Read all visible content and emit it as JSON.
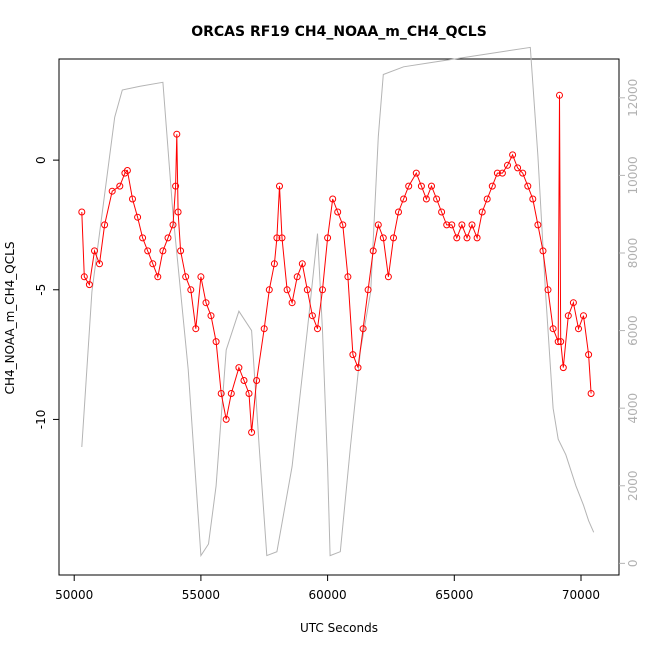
{
  "chart_data": {
    "type": "line",
    "title": "ORCAS RF19 CH4_NOAA_m_CH4_QCLS",
    "xlabel": "UTC Seconds",
    "ylabel": "CH4_NOAA_m_CH4_QCLS",
    "xlim": [
      49400,
      71500
    ],
    "ylim": [
      -16.0,
      3.9
    ],
    "y2lim": [
      -300,
      13000
    ],
    "x_ticks": [
      50000,
      55000,
      60000,
      65000,
      70000
    ],
    "x_tick_labels": [
      "50000",
      "55000",
      "60000",
      "65000",
      "70000"
    ],
    "y_ticks": [
      0,
      -5,
      -10
    ],
    "y_tick_labels": [
      "0",
      "-5",
      "-10"
    ],
    "y2_ticks": [
      0,
      2000,
      4000,
      6000,
      8000,
      10000,
      12000
    ],
    "y2_tick_labels": [
      "0",
      "2000",
      "4000",
      "6000",
      "8000",
      "10000",
      "12000"
    ],
    "colors": {
      "series": "#ff0000",
      "altitude": "#b4b4b4",
      "axis": "#000000"
    },
    "series": [
      {
        "name": "CH4_NOAA_m_CH4_QCLS",
        "axis": "left",
        "style": "line+markers",
        "points": [
          [
            50300,
            -2.0
          ],
          [
            50400,
            -4.5
          ],
          [
            50600,
            -4.8
          ],
          [
            50800,
            -3.5
          ],
          [
            51000,
            -4.0
          ],
          [
            51200,
            -2.5
          ],
          [
            51500,
            -1.2
          ],
          [
            51800,
            -1.0
          ],
          [
            52000,
            -0.5
          ],
          [
            52100,
            -0.4
          ],
          [
            52300,
            -1.5
          ],
          [
            52500,
            -2.2
          ],
          [
            52700,
            -3.0
          ],
          [
            52900,
            -3.5
          ],
          [
            53100,
            -4.0
          ],
          [
            53300,
            -4.5
          ],
          [
            53500,
            -3.5
          ],
          [
            53700,
            -3.0
          ],
          [
            53900,
            -2.5
          ],
          [
            54000,
            -1.0
          ],
          [
            54050,
            1.0
          ],
          [
            54100,
            -2.0
          ],
          [
            54200,
            -3.5
          ],
          [
            54400,
            -4.5
          ],
          [
            54600,
            -5.0
          ],
          [
            54800,
            -6.5
          ],
          [
            55000,
            -4.5
          ],
          [
            55200,
            -5.5
          ],
          [
            55400,
            -6.0
          ],
          [
            55600,
            -7.0
          ],
          [
            55800,
            -9.0
          ],
          [
            56000,
            -10.0
          ],
          [
            56200,
            -9.0
          ],
          [
            56500,
            -8.0
          ],
          [
            56700,
            -8.5
          ],
          [
            56900,
            -9.0
          ],
          [
            57000,
            -10.5
          ],
          [
            57200,
            -8.5
          ],
          [
            57500,
            -6.5
          ],
          [
            57700,
            -5.0
          ],
          [
            57900,
            -4.0
          ],
          [
            58000,
            -3.0
          ],
          [
            58100,
            -1.0
          ],
          [
            58200,
            -3.0
          ],
          [
            58400,
            -5.0
          ],
          [
            58600,
            -5.5
          ],
          [
            58800,
            -4.5
          ],
          [
            59000,
            -4.0
          ],
          [
            59200,
            -5.0
          ],
          [
            59400,
            -6.0
          ],
          [
            59600,
            -6.5
          ],
          [
            59800,
            -5.0
          ],
          [
            60000,
            -3.0
          ],
          [
            60200,
            -1.5
          ],
          [
            60400,
            -2.0
          ],
          [
            60600,
            -2.5
          ],
          [
            60800,
            -4.5
          ],
          [
            61000,
            -7.5
          ],
          [
            61200,
            -8.0
          ],
          [
            61400,
            -6.5
          ],
          [
            61600,
            -5.0
          ],
          [
            61800,
            -3.5
          ],
          [
            62000,
            -2.5
          ],
          [
            62200,
            -3.0
          ],
          [
            62400,
            -4.5
          ],
          [
            62600,
            -3.0
          ],
          [
            62800,
            -2.0
          ],
          [
            63000,
            -1.5
          ],
          [
            63200,
            -1.0
          ],
          [
            63500,
            -0.5
          ],
          [
            63700,
            -1.0
          ],
          [
            63900,
            -1.5
          ],
          [
            64100,
            -1.0
          ],
          [
            64300,
            -1.5
          ],
          [
            64500,
            -2.0
          ],
          [
            64700,
            -2.5
          ],
          [
            64900,
            -2.5
          ],
          [
            65100,
            -3.0
          ],
          [
            65300,
            -2.5
          ],
          [
            65500,
            -3.0
          ],
          [
            65700,
            -2.5
          ],
          [
            65900,
            -3.0
          ],
          [
            66100,
            -2.0
          ],
          [
            66300,
            -1.5
          ],
          [
            66500,
            -1.0
          ],
          [
            66700,
            -0.5
          ],
          [
            66900,
            -0.5
          ],
          [
            67100,
            -0.2
          ],
          [
            67300,
            0.2
          ],
          [
            67500,
            -0.3
          ],
          [
            67700,
            -0.5
          ],
          [
            67900,
            -1.0
          ],
          [
            68100,
            -1.5
          ],
          [
            68300,
            -2.5
          ],
          [
            68500,
            -3.5
          ],
          [
            68700,
            -5.0
          ],
          [
            68900,
            -6.5
          ],
          [
            69100,
            -7.0
          ],
          [
            69150,
            2.5
          ],
          [
            69200,
            -7.0
          ],
          [
            69300,
            -8.0
          ],
          [
            69500,
            -6.0
          ],
          [
            69700,
            -5.5
          ],
          [
            69900,
            -6.5
          ],
          [
            70100,
            -6.0
          ],
          [
            70300,
            -7.5
          ],
          [
            70400,
            -9.0
          ]
        ]
      },
      {
        "name": "Altitude",
        "axis": "right",
        "style": "line",
        "points": [
          [
            50300,
            3000
          ],
          [
            50700,
            7000
          ],
          [
            51300,
            10000
          ],
          [
            51600,
            11500
          ],
          [
            51900,
            12200
          ],
          [
            52600,
            12300
          ],
          [
            53500,
            12400
          ],
          [
            53900,
            9000
          ],
          [
            54500,
            5000
          ],
          [
            55000,
            200
          ],
          [
            55300,
            500
          ],
          [
            55600,
            2000
          ],
          [
            56000,
            5500
          ],
          [
            56500,
            6500
          ],
          [
            57000,
            6000
          ],
          [
            57300,
            3000
          ],
          [
            57600,
            200
          ],
          [
            58000,
            300
          ],
          [
            58600,
            2500
          ],
          [
            59200,
            6000
          ],
          [
            59600,
            8500
          ],
          [
            59800,
            6000
          ],
          [
            60000,
            2500
          ],
          [
            60100,
            200
          ],
          [
            60500,
            300
          ],
          [
            60900,
            3000
          ],
          [
            61300,
            5500
          ],
          [
            61700,
            7000
          ],
          [
            62000,
            11000
          ],
          [
            62200,
            12600
          ],
          [
            63000,
            12800
          ],
          [
            64000,
            12900
          ],
          [
            65000,
            13000
          ],
          [
            66000,
            13100
          ],
          [
            67000,
            13200
          ],
          [
            68000,
            13300
          ],
          [
            68300,
            10500
          ],
          [
            68600,
            7000
          ],
          [
            68900,
            4000
          ],
          [
            69100,
            3200
          ],
          [
            69400,
            2800
          ],
          [
            69800,
            2000
          ],
          [
            70100,
            1500
          ],
          [
            70300,
            1100
          ],
          [
            70500,
            800
          ]
        ]
      }
    ]
  }
}
